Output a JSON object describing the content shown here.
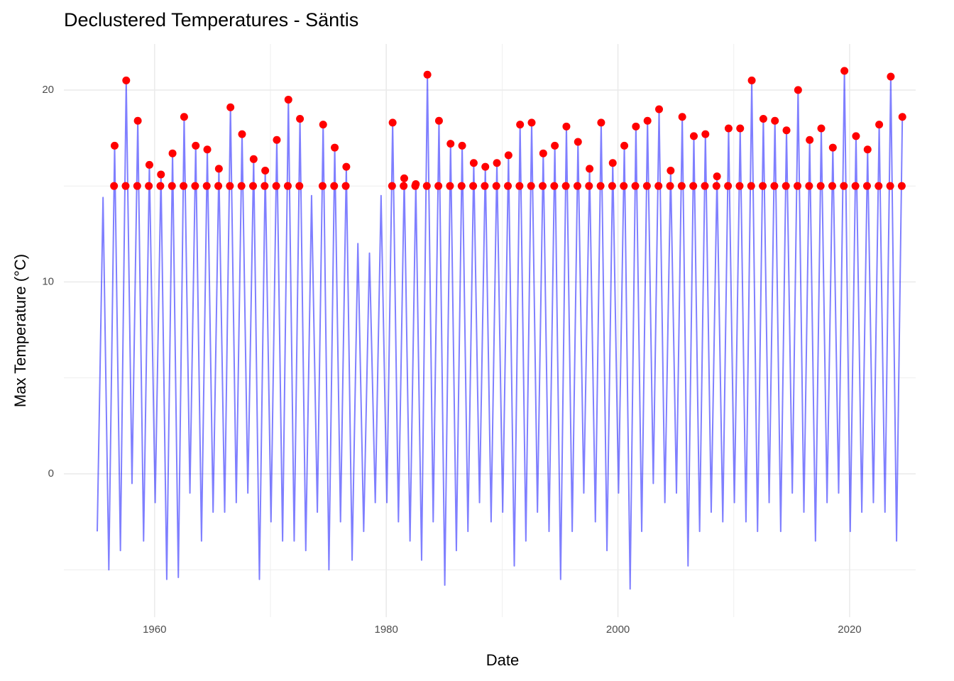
{
  "chart_data": {
    "type": "line",
    "title": "Declustered Temperatures - Säntis",
    "x_label": "Date",
    "y_label": "Max Temperature (°C)",
    "xlim": [
      1952.17,
      2025.7
    ],
    "xticks": [
      1960,
      1980,
      2000,
      2020
    ],
    "minor_xticks": [
      1970,
      1990,
      2010
    ],
    "ylim": [
      -7.47,
      22.4
    ],
    "yticks": [
      0,
      10,
      20
    ],
    "minor_yticks": [
      -5,
      5,
      15
    ],
    "grid": true,
    "color": "blue",
    "x": [
      1955.05,
      1955.55,
      1956.05,
      1956.55,
      1957.05,
      1957.55,
      1958.05,
      1958.55,
      1959.05,
      1959.55,
      1960.05,
      1960.55,
      1961.05,
      1961.55,
      1962.05,
      1962.55,
      1963.05,
      1963.55,
      1964.05,
      1964.55,
      1965.05,
      1965.55,
      1966.05,
      1966.55,
      1967.05,
      1967.55,
      1968.05,
      1968.55,
      1969.05,
      1969.55,
      1970.05,
      1970.55,
      1971.05,
      1971.55,
      1972.05,
      1972.55,
      1973.05,
      1973.55,
      1974.05,
      1974.55,
      1975.05,
      1975.55,
      1976.05,
      1976.55,
      1977.05,
      1977.55,
      1978.05,
      1978.55,
      1979.05,
      1979.55,
      1980.05,
      1980.55,
      1981.05,
      1981.55,
      1982.05,
      1982.55,
      1983.05,
      1983.55,
      1984.05,
      1984.55,
      1985.05,
      1985.55,
      1986.05,
      1986.55,
      1987.05,
      1987.55,
      1988.05,
      1988.55,
      1989.05,
      1989.55,
      1990.05,
      1990.55,
      1991.05,
      1991.55,
      1992.05,
      1992.55,
      1993.05,
      1993.55,
      1994.05,
      1994.55,
      1995.05,
      1995.55,
      1996.05,
      1996.55,
      1997.05,
      1997.55,
      1998.05,
      1998.55,
      1999.05,
      1999.55,
      2000.05,
      2000.55,
      2001.05,
      2001.55,
      2002.05,
      2002.55,
      2003.05,
      2003.55,
      2004.05,
      2004.55,
      2005.05,
      2005.55,
      2006.05,
      2006.55,
      2007.05,
      2007.55,
      2008.05,
      2008.55,
      2009.05,
      2009.55,
      2010.05,
      2010.55,
      2011.05,
      2011.55,
      2012.05,
      2012.55,
      2013.05,
      2013.55,
      2014.05,
      2014.55,
      2015.05,
      2015.55,
      2016.05,
      2016.55,
      2017.05,
      2017.55,
      2018.05,
      2018.55,
      2019.05,
      2019.55,
      2020.05,
      2020.55,
      2021.05,
      2021.55,
      2022.05,
      2022.55,
      2023.05,
      2023.55,
      2024.05,
      2024.55
    ],
    "values": [
      -3,
      14.4,
      -5,
      17.1,
      -4,
      20.5,
      -0.5,
      18.4,
      -3.5,
      16.1,
      -1.5,
      15.6,
      -5.5,
      16.7,
      -5.4,
      18.6,
      -1,
      17.1,
      -3.5,
      16.9,
      -2,
      15.9,
      -2,
      19.1,
      -1.5,
      17.7,
      -1,
      16.4,
      -5.5,
      15.8,
      -2.5,
      17.4,
      -3.5,
      19.5,
      -3.5,
      18.5,
      -4,
      14.5,
      -2,
      18.2,
      -5,
      17,
      -2.5,
      16,
      -4.5,
      12,
      -3,
      11.5,
      -1.5,
      14.5,
      -1.5,
      18.3,
      -2.5,
      15.4,
      -3.5,
      15.1,
      -4.5,
      20.8,
      -2.5,
      18.4,
      -5.8,
      17.2,
      -4,
      17.1,
      -3,
      16.2,
      -1.5,
      16,
      -2.5,
      16.2,
      -2,
      16.6,
      -4.8,
      18.2,
      -3.5,
      18.3,
      -2,
      16.7,
      -3,
      17.1,
      -5.5,
      18.1,
      -3,
      17.3,
      -1,
      15.9,
      -2.5,
      18.3,
      -4,
      16.2,
      -1,
      17.1,
      -6,
      18.1,
      -3,
      18.4,
      -0.5,
      19,
      -1.5,
      15.8,
      -1,
      18.6,
      -4.8,
      17.6,
      -3,
      17.7,
      -2,
      15.5,
      -2.5,
      18,
      -1.5,
      18,
      -2.5,
      20.5,
      -3,
      18.5,
      -1.5,
      18.4,
      -3,
      17.9,
      -1,
      20,
      -2,
      17.4,
      -3.5,
      18,
      -1.5,
      17,
      -1,
      21,
      -3,
      17.6,
      -2,
      16.9,
      -1.5,
      18.2,
      -2,
      20.7,
      -3.5,
      18.6
    ],
    "points": {
      "color": "red",
      "x": [
        1956.55,
        1957.55,
        1958.55,
        1959.55,
        1960.55,
        1961.55,
        1962.55,
        1963.55,
        1964.55,
        1965.55,
        1966.55,
        1967.55,
        1968.55,
        1969.55,
        1970.55,
        1971.55,
        1972.55,
        1974.55,
        1975.55,
        1976.55,
        1980.55,
        1981.55,
        1982.55,
        1983.55,
        1984.55,
        1985.55,
        1986.55,
        1987.55,
        1988.55,
        1989.55,
        1990.55,
        1991.55,
        1992.55,
        1993.55,
        1994.55,
        1995.55,
        1996.55,
        1997.55,
        1998.55,
        1999.55,
        2000.55,
        2001.55,
        2002.55,
        2003.55,
        2004.55,
        2005.55,
        2006.55,
        2007.55,
        2008.55,
        2009.55,
        2010.55,
        2011.55,
        2012.55,
        2013.55,
        2014.55,
        2015.55,
        2016.55,
        2017.55,
        2018.55,
        2019.55,
        2020.55,
        2021.55,
        2022.55,
        2023.55,
        2024.55,
        1956.5,
        1957.5,
        1958.5,
        1959.5,
        1960.5,
        1961.5,
        1962.5,
        1963.5,
        1964.5,
        1965.5,
        1966.5,
        1967.5,
        1968.5,
        1969.5,
        1970.5,
        1971.5,
        1972.5,
        1974.5,
        1975.5,
        1976.5,
        1980.5,
        1981.5,
        1982.5,
        1983.5,
        1984.5,
        1985.5,
        1986.5,
        1987.5,
        1988.5,
        1989.5,
        1990.5,
        1991.5,
        1992.5,
        1993.5,
        1994.5,
        1995.5,
        1996.5,
        1997.5,
        1998.5,
        1999.5,
        2000.5,
        2001.5,
        2002.5,
        2003.5,
        2004.5,
        2005.5,
        2006.5,
        2007.5,
        2008.5,
        2009.5,
        2010.5,
        2011.5,
        2012.5,
        2013.5,
        2014.5,
        2015.5,
        2016.5,
        2017.5,
        2018.5,
        2019.5,
        2020.5,
        2021.5,
        2022.5,
        2023.5,
        2024.5
      ],
      "values": [
        17.1,
        20.5,
        18.4,
        16.1,
        15.6,
        16.7,
        18.6,
        17.1,
        16.9,
        15.9,
        19.1,
        17.7,
        16.4,
        15.8,
        17.4,
        19.5,
        18.5,
        18.2,
        17,
        16,
        18.3,
        15.4,
        15.1,
        20.8,
        18.4,
        17.2,
        17.1,
        16.2,
        16,
        16.2,
        16.6,
        18.2,
        18.3,
        16.7,
        17.1,
        18.1,
        17.3,
        15.9,
        18.3,
        16.2,
        17.1,
        18.1,
        18.4,
        19,
        15.8,
        18.6,
        17.6,
        17.7,
        15.5,
        18,
        18,
        20.5,
        18.5,
        18.4,
        17.9,
        20,
        17.4,
        18,
        17,
        21,
        17.6,
        16.9,
        18.2,
        20.7,
        18.6,
        15,
        15,
        15,
        15,
        15,
        15,
        15,
        15,
        15,
        15,
        15,
        15,
        15,
        15,
        15,
        15,
        15,
        15,
        15,
        15,
        15,
        15,
        15,
        15,
        15,
        15,
        15,
        15,
        15,
        15,
        15,
        15,
        15,
        15,
        15,
        15,
        15,
        15,
        15,
        15,
        15,
        15,
        15,
        15,
        15,
        15,
        15,
        15,
        15,
        15,
        15,
        15,
        15,
        15,
        15,
        15,
        15,
        15,
        15,
        15,
        15,
        15,
        15,
        15,
        15
      ]
    }
  }
}
